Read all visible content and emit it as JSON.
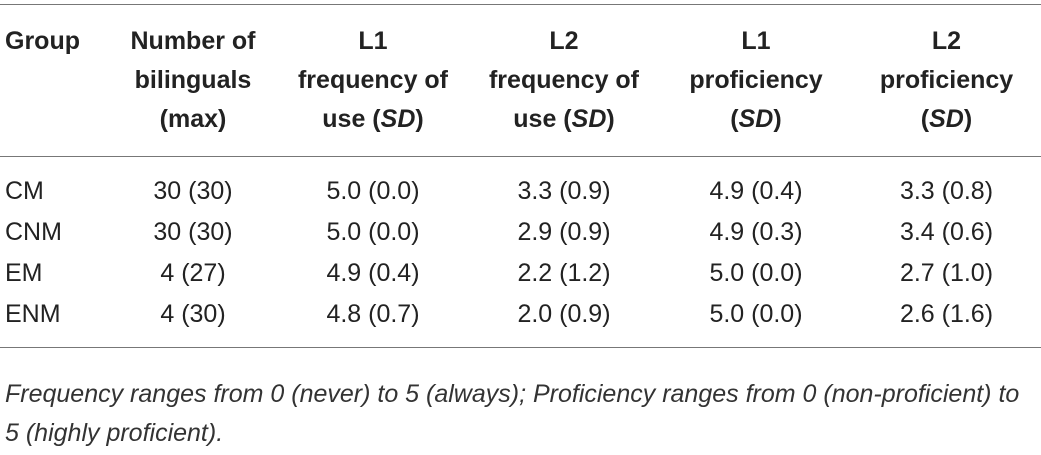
{
  "table": {
    "headers": {
      "group": "Group",
      "bilinguals": [
        "Number of",
        "bilinguals",
        "(max)"
      ],
      "l1_freq": [
        "L1",
        "frequency of",
        "use (",
        "SD",
        ")"
      ],
      "l2_freq": [
        "L2",
        "frequency of",
        "use (",
        "SD",
        ")"
      ],
      "l1_prof": [
        "L1",
        "proficiency",
        "(",
        "SD",
        ")"
      ],
      "l2_prof": [
        "L2",
        "proficiency",
        "(",
        "SD",
        ")"
      ]
    },
    "rows": [
      {
        "group": "CM",
        "bilinguals": "30 (30)",
        "l1_freq": "5.0 (0.0)",
        "l2_freq": "3.3 (0.9)",
        "l1_prof": "4.9 (0.4)",
        "l2_prof": "3.3 (0.8)"
      },
      {
        "group": "CNM",
        "bilinguals": "30 (30)",
        "l1_freq": "5.0 (0.0)",
        "l2_freq": "2.9 (0.9)",
        "l1_prof": "4.9 (0.3)",
        "l2_prof": "3.4 (0.6)"
      },
      {
        "group": "EM",
        "bilinguals": "4 (27)",
        "l1_freq": "4.9 (0.4)",
        "l2_freq": "2.2 (1.2)",
        "l1_prof": "5.0 (0.0)",
        "l2_prof": "2.7 (1.0)"
      },
      {
        "group": "ENM",
        "bilinguals": "4 (30)",
        "l1_freq": "4.8 (0.7)",
        "l2_freq": "2.0 (0.9)",
        "l1_prof": "5.0 (0.0)",
        "l2_prof": "2.6 (1.6)"
      }
    ],
    "footnote": "Frequency ranges from 0 (never) to 5 (always); Proficiency ranges from 0 (non-proficient) to 5 (highly proficient)."
  }
}
